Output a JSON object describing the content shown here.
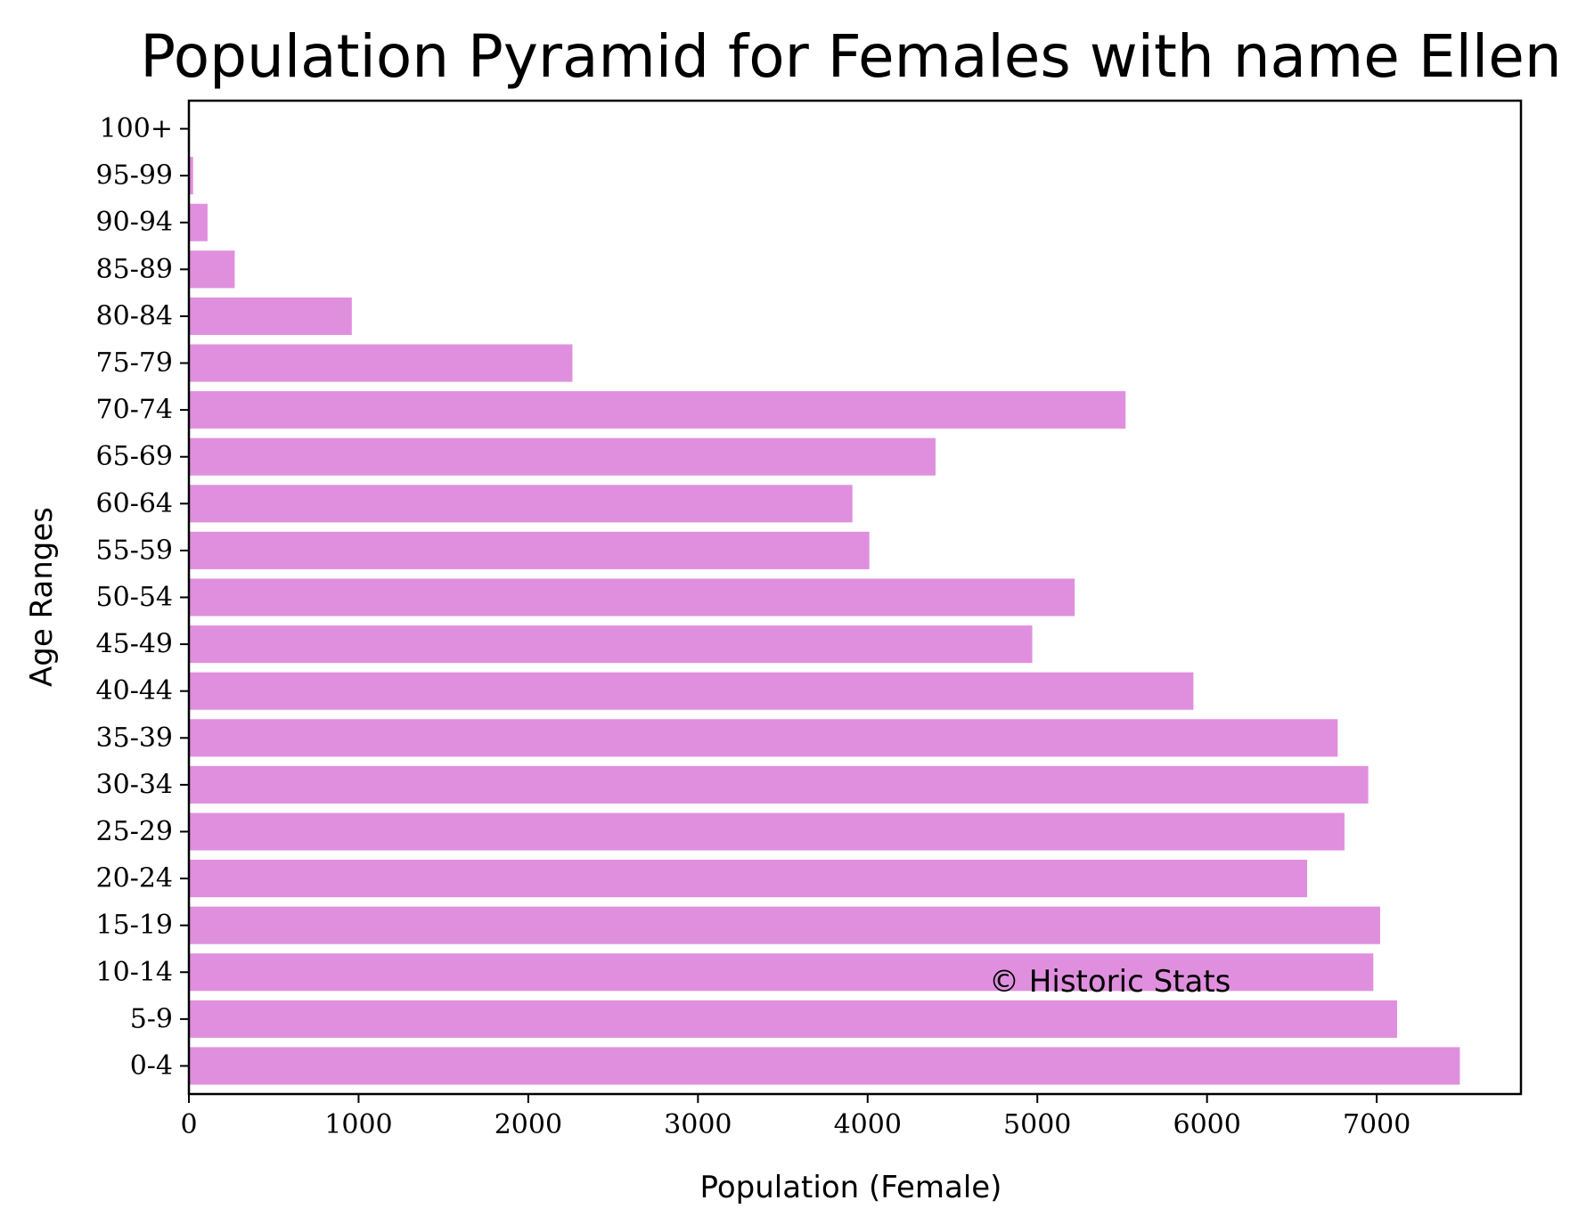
{
  "chart_data": {
    "type": "bar",
    "orientation": "horizontal",
    "title": "Population Pyramid for Females with name Ellen",
    "xlabel": "Population (Female)",
    "ylabel": "Age Ranges",
    "categories": [
      "0-4",
      "5-9",
      "10-14",
      "15-19",
      "20-24",
      "25-29",
      "30-34",
      "35-39",
      "40-44",
      "45-49",
      "50-54",
      "55-59",
      "60-64",
      "65-69",
      "70-74",
      "75-79",
      "80-84",
      "85-89",
      "90-94",
      "95-99",
      "100+"
    ],
    "values": [
      7490,
      7120,
      6980,
      7020,
      6590,
      6810,
      6950,
      6770,
      5920,
      4970,
      5220,
      4010,
      3910,
      4400,
      5520,
      2260,
      960,
      270,
      110,
      25,
      0
    ],
    "xlim": [
      0,
      7850
    ],
    "xticks": [
      0,
      1000,
      2000,
      3000,
      4000,
      5000,
      6000,
      7000
    ],
    "xtick_labels": [
      "0",
      "1000",
      "2000",
      "3000",
      "4000",
      "5000",
      "6000",
      "7000"
    ],
    "bar_color": "#e08fdf",
    "grid": false,
    "watermark": "© Historic Stats"
  }
}
